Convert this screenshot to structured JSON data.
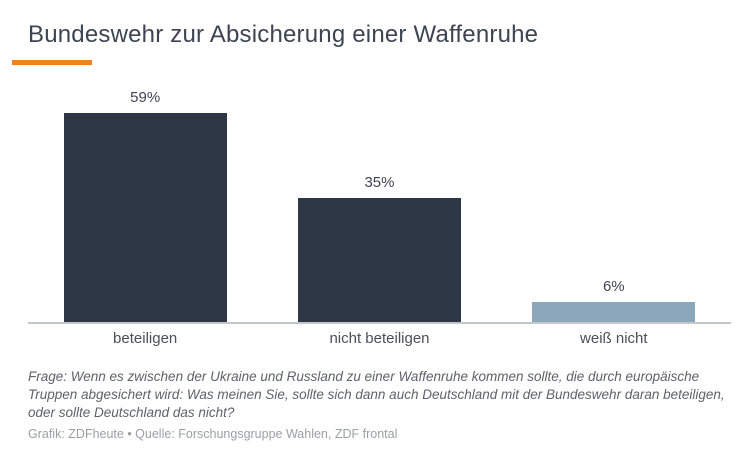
{
  "header": {
    "title": "Bundeswehr zur Absicherung einer Waffenruhe",
    "accent_color": "#f3801e"
  },
  "chart_data": {
    "type": "bar",
    "title": "Bundeswehr zur Absicherung einer Waffenruhe",
    "categories": [
      "beteiligen",
      "nicht beteiligen",
      "weiß nicht"
    ],
    "values": [
      59,
      35,
      6
    ],
    "value_labels": [
      "59%",
      "35%",
      "6%"
    ],
    "bar_colors": [
      "#2d3746",
      "#2d3746",
      "#8ca7bb"
    ],
    "unit": "percent",
    "xlabel": "",
    "ylabel": "",
    "ylim": [
      0,
      62
    ],
    "grid": false,
    "legend": "none",
    "axis_line_color": "#c3c7cb"
  },
  "footer": {
    "question": "Frage: Wenn es zwischen der Ukraine und Russland zu einer Waffenruhe kommen sollte, die durch europäische Truppen abgesichert wird: Was meinen Sie, sollte sich dann auch Deutschland mit der Bundeswehr daran beteiligen, oder sollte Deutschland das nicht?",
    "source": "Grafik: ZDFheute • Quelle: Forschungsgruppe Wahlen, ZDF frontal"
  }
}
